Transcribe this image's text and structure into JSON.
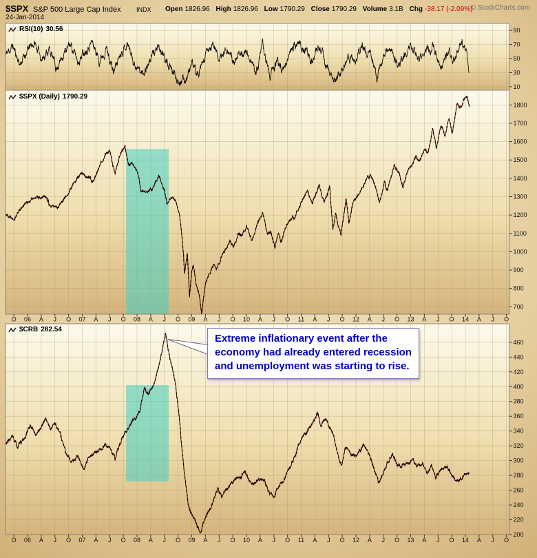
{
  "header": {
    "symbol": "$SPX",
    "name": "S&P 500 Large Cap Index",
    "exchange": "INDX",
    "date": "24-Jan-2014",
    "copyright": "© StockCharts.com",
    "quote": {
      "open_label": "Open",
      "open": "1826.96",
      "high_label": "High",
      "high": "1826.96",
      "low_label": "Low",
      "low": "1790.29",
      "close_label": "Close",
      "close": "1790.29",
      "volume_label": "Volume",
      "volume": "3.1B",
      "chg_label": "Chg",
      "chg": "-38.17 (-2.09%)"
    }
  },
  "annotation": {
    "lines": [
      "Extreme inflationary event after the",
      "economy had already entered recession",
      "and unemployment was starting to rise."
    ],
    "target": {
      "t": 2008.56,
      "v": 464
    }
  },
  "highlight": {
    "t0": 2007.8,
    "t1": 2008.58,
    "regions": [
      {
        "panel": 1,
        "v0": 660,
        "v1": 1560
      },
      {
        "panel": 2,
        "v0": 272,
        "v1": 402
      }
    ]
  },
  "xaxis": {
    "t_start": 2005.75,
    "t_step": 0.25,
    "labels": [
      "O",
      "06",
      "A",
      "J",
      "O",
      "07",
      "A",
      "J",
      "O",
      "08",
      "A",
      "J",
      "O",
      "09",
      "A",
      "J",
      "O",
      "10",
      "A",
      "J",
      "O",
      "11",
      "A",
      "J",
      "O",
      "12",
      "A",
      "J",
      "O",
      "13",
      "A",
      "J",
      "O",
      "14",
      "A",
      "J",
      "O"
    ]
  },
  "colors": {
    "background": "#D9BC89",
    "panel_top": "#FDFAEC",
    "panel_bottom": "#D5B47C",
    "grid": "#A89875",
    "border": "#8B8578",
    "series": "#000000",
    "down_tick": "#CC0000",
    "highlight": "#3FD0C4",
    "annotation_text": "#0000CC",
    "negative": "#CC0000",
    "copyright": "#6F6F6F"
  },
  "chart_data": [
    {
      "id": "rsi",
      "type": "line",
      "label": "RSI(10)",
      "last_value": "30.56",
      "ylim": [
        5,
        100
      ],
      "yticks": [
        90,
        70,
        50,
        30,
        10
      ],
      "noise": 10,
      "clamp": [
        7,
        97
      ],
      "seed": 11,
      "line_width": 0.8,
      "points": [
        [
          2005.6,
          55
        ],
        [
          2005.73,
          68
        ],
        [
          2005.86,
          42
        ],
        [
          2006.0,
          62
        ],
        [
          2006.13,
          72
        ],
        [
          2006.26,
          50
        ],
        [
          2006.4,
          64
        ],
        [
          2006.53,
          36
        ],
        [
          2006.66,
          58
        ],
        [
          2006.79,
          70
        ],
        [
          2006.92,
          46
        ],
        [
          2007.05,
          63
        ],
        [
          2007.18,
          74
        ],
        [
          2007.31,
          48
        ],
        [
          2007.44,
          66
        ],
        [
          2007.57,
          30
        ],
        [
          2007.7,
          60
        ],
        [
          2007.83,
          72
        ],
        [
          2007.96,
          42
        ],
        [
          2008.09,
          28
        ],
        [
          2008.22,
          45
        ],
        [
          2008.35,
          65
        ],
        [
          2008.48,
          55
        ],
        [
          2008.61,
          35
        ],
        [
          2008.74,
          22
        ],
        [
          2008.87,
          18
        ],
        [
          2009.0,
          42
        ],
        [
          2009.13,
          25
        ],
        [
          2009.26,
          55
        ],
        [
          2009.39,
          70
        ],
        [
          2009.52,
          48
        ],
        [
          2009.65,
          68
        ],
        [
          2009.78,
          40
        ],
        [
          2009.91,
          62
        ],
        [
          2010.04,
          55
        ],
        [
          2010.17,
          30
        ],
        [
          2010.3,
          68
        ],
        [
          2010.43,
          25
        ],
        [
          2010.56,
          45
        ],
        [
          2010.69,
          35
        ],
        [
          2010.82,
          65
        ],
        [
          2010.95,
          72
        ],
        [
          2011.08,
          60
        ],
        [
          2011.21,
          45
        ],
        [
          2011.34,
          68
        ],
        [
          2011.47,
          35
        ],
        [
          2011.6,
          20
        ],
        [
          2011.73,
          28
        ],
        [
          2011.86,
          55
        ],
        [
          2011.99,
          48
        ],
        [
          2012.12,
          65
        ],
        [
          2012.25,
          58
        ],
        [
          2012.38,
          25
        ],
        [
          2012.51,
          52
        ],
        [
          2012.64,
          68
        ],
        [
          2012.77,
          38
        ],
        [
          2012.9,
          58
        ],
        [
          2013.03,
          66
        ],
        [
          2013.16,
          45
        ],
        [
          2013.29,
          62
        ],
        [
          2013.42,
          70
        ],
        [
          2013.55,
          35
        ],
        [
          2013.68,
          60
        ],
        [
          2013.81,
          48
        ],
        [
          2013.94,
          72
        ],
        [
          2014.02,
          55
        ],
        [
          2014.07,
          30.56
        ]
      ]
    },
    {
      "id": "spx",
      "type": "line",
      "label": "$SPX (Daily)",
      "last_value": "1790.29",
      "ylim": [
        660,
        1880
      ],
      "yticks": [
        1800,
        1700,
        1600,
        1500,
        1400,
        1300,
        1200,
        1100,
        1000,
        900,
        800,
        700
      ],
      "noise": 14,
      "seed": 22,
      "red_flecks": true,
      "line_width": 0.9,
      "points": [
        [
          2005.6,
          1205
        ],
        [
          2005.75,
          1185
        ],
        [
          2005.92,
          1255
        ],
        [
          2006.08,
          1285
        ],
        [
          2006.2,
          1295
        ],
        [
          2006.33,
          1310
        ],
        [
          2006.42,
          1240
        ],
        [
          2006.55,
          1245
        ],
        [
          2006.7,
          1300
        ],
        [
          2006.9,
          1395
        ],
        [
          2007.0,
          1430
        ],
        [
          2007.12,
          1400
        ],
        [
          2007.18,
          1380
        ],
        [
          2007.3,
          1450
        ],
        [
          2007.42,
          1535
        ],
        [
          2007.5,
          1550
        ],
        [
          2007.6,
          1420
        ],
        [
          2007.7,
          1540
        ],
        [
          2007.78,
          1570
        ],
        [
          2007.85,
          1470
        ],
        [
          2007.92,
          1480
        ],
        [
          2008.0,
          1440
        ],
        [
          2008.08,
          1330
        ],
        [
          2008.2,
          1320
        ],
        [
          2008.3,
          1350
        ],
        [
          2008.4,
          1420
        ],
        [
          2008.5,
          1340
        ],
        [
          2008.55,
          1260
        ],
        [
          2008.62,
          1290
        ],
        [
          2008.7,
          1280
        ],
        [
          2008.78,
          1190
        ],
        [
          2008.83,
          1050
        ],
        [
          2008.87,
          880
        ],
        [
          2008.92,
          990
        ],
        [
          2008.96,
          750
        ],
        [
          2009.0,
          900
        ],
        [
          2009.03,
          930
        ],
        [
          2009.08,
          820
        ],
        [
          2009.13,
          780
        ],
        [
          2009.18,
          672
        ],
        [
          2009.25,
          820
        ],
        [
          2009.33,
          880
        ],
        [
          2009.4,
          930
        ],
        [
          2009.45,
          900
        ],
        [
          2009.52,
          950
        ],
        [
          2009.6,
          1010
        ],
        [
          2009.7,
          1065
        ],
        [
          2009.77,
          1030
        ],
        [
          2009.85,
          1100
        ],
        [
          2009.92,
          1090
        ],
        [
          2010.0,
          1140
        ],
        [
          2010.1,
          1060
        ],
        [
          2010.2,
          1150
        ],
        [
          2010.3,
          1210
        ],
        [
          2010.38,
          1090
        ],
        [
          2010.45,
          1110
        ],
        [
          2010.52,
          1025
        ],
        [
          2010.58,
          1110
        ],
        [
          2010.63,
          1045
        ],
        [
          2010.72,
          1140
        ],
        [
          2010.8,
          1175
        ],
        [
          2010.88,
          1185
        ],
        [
          2011.0,
          1270
        ],
        [
          2011.12,
          1340
        ],
        [
          2011.2,
          1255
        ],
        [
          2011.33,
          1365
        ],
        [
          2011.42,
          1270
        ],
        [
          2011.52,
          1350
        ],
        [
          2011.58,
          1125
        ],
        [
          2011.63,
          1210
        ],
        [
          2011.68,
          1130
        ],
        [
          2011.73,
          1090
        ],
        [
          2011.82,
          1290
        ],
        [
          2011.87,
          1160
        ],
        [
          2011.95,
          1265
        ],
        [
          2012.05,
          1315
        ],
        [
          2012.15,
          1370
        ],
        [
          2012.27,
          1420
        ],
        [
          2012.35,
          1360
        ],
        [
          2012.43,
          1270
        ],
        [
          2012.52,
          1375
        ],
        [
          2012.58,
          1330
        ],
        [
          2012.7,
          1470
        ],
        [
          2012.78,
          1430
        ],
        [
          2012.86,
          1350
        ],
        [
          2012.95,
          1445
        ],
        [
          2013.0,
          1465
        ],
        [
          2013.1,
          1515
        ],
        [
          2013.16,
          1490
        ],
        [
          2013.25,
          1565
        ],
        [
          2013.32,
          1540
        ],
        [
          2013.4,
          1665
        ],
        [
          2013.47,
          1565
        ],
        [
          2013.55,
          1695
        ],
        [
          2013.63,
          1630
        ],
        [
          2013.7,
          1730
        ],
        [
          2013.76,
          1650
        ],
        [
          2013.85,
          1800
        ],
        [
          2013.9,
          1780
        ],
        [
          2014.0,
          1845
        ],
        [
          2014.04,
          1850
        ],
        [
          2014.07,
          1790.29
        ]
      ]
    },
    {
      "id": "crb",
      "type": "line",
      "label": "$CRB",
      "last_value": "282.54",
      "ylim": [
        200,
        485
      ],
      "yticks": [
        460,
        440,
        420,
        400,
        380,
        360,
        340,
        320,
        300,
        280,
        260,
        240,
        220,
        200
      ],
      "noise": 4,
      "seed": 33,
      "red_flecks": true,
      "line_width": 0.9,
      "points": [
        [
          2005.6,
          322
        ],
        [
          2005.72,
          332
        ],
        [
          2005.82,
          318
        ],
        [
          2005.95,
          330
        ],
        [
          2006.05,
          348
        ],
        [
          2006.15,
          335
        ],
        [
          2006.25,
          345
        ],
        [
          2006.33,
          358
        ],
        [
          2006.42,
          342
        ],
        [
          2006.5,
          352
        ],
        [
          2006.6,
          335
        ],
        [
          2006.72,
          305
        ],
        [
          2006.82,
          298
        ],
        [
          2006.92,
          308
        ],
        [
          2007.02,
          288
        ],
        [
          2007.1,
          300
        ],
        [
          2007.2,
          308
        ],
        [
          2007.3,
          312
        ],
        [
          2007.4,
          320
        ],
        [
          2007.5,
          318
        ],
        [
          2007.6,
          302
        ],
        [
          2007.7,
          325
        ],
        [
          2007.8,
          340
        ],
        [
          2007.9,
          352
        ],
        [
          2007.97,
          358
        ],
        [
          2008.05,
          368
        ],
        [
          2008.13,
          398
        ],
        [
          2008.2,
          388
        ],
        [
          2008.28,
          398
        ],
        [
          2008.37,
          420
        ],
        [
          2008.45,
          445
        ],
        [
          2008.52,
          473
        ],
        [
          2008.57,
          448
        ],
        [
          2008.63,
          428
        ],
        [
          2008.7,
          405
        ],
        [
          2008.76,
          368
        ],
        [
          2008.82,
          318
        ],
        [
          2008.88,
          275
        ],
        [
          2008.94,
          238
        ],
        [
          2009.0,
          228
        ],
        [
          2009.08,
          215
        ],
        [
          2009.16,
          202
        ],
        [
          2009.22,
          220
        ],
        [
          2009.3,
          228
        ],
        [
          2009.4,
          248
        ],
        [
          2009.48,
          262
        ],
        [
          2009.55,
          250
        ],
        [
          2009.63,
          262
        ],
        [
          2009.72,
          268
        ],
        [
          2009.8,
          276
        ],
        [
          2009.9,
          278
        ],
        [
          2009.98,
          284
        ],
        [
          2010.06,
          272
        ],
        [
          2010.15,
          268
        ],
        [
          2010.24,
          276
        ],
        [
          2010.33,
          272
        ],
        [
          2010.42,
          256
        ],
        [
          2010.5,
          252
        ],
        [
          2010.58,
          265
        ],
        [
          2010.67,
          272
        ],
        [
          2010.76,
          288
        ],
        [
          2010.85,
          298
        ],
        [
          2010.94,
          318
        ],
        [
          2011.02,
          333
        ],
        [
          2011.12,
          340
        ],
        [
          2011.22,
          352
        ],
        [
          2011.3,
          366
        ],
        [
          2011.36,
          348
        ],
        [
          2011.44,
          355
        ],
        [
          2011.52,
          348
        ],
        [
          2011.6,
          332
        ],
        [
          2011.68,
          302
        ],
        [
          2011.74,
          295
        ],
        [
          2011.8,
          320
        ],
        [
          2011.88,
          310
        ],
        [
          2011.96,
          306
        ],
        [
          2012.05,
          312
        ],
        [
          2012.14,
          322
        ],
        [
          2012.23,
          310
        ],
        [
          2012.32,
          292
        ],
        [
          2012.42,
          268
        ],
        [
          2012.5,
          284
        ],
        [
          2012.58,
          298
        ],
        [
          2012.66,
          310
        ],
        [
          2012.75,
          296
        ],
        [
          2012.84,
          294
        ],
        [
          2012.93,
          296
        ],
        [
          2013.02,
          300
        ],
        [
          2013.12,
          292
        ],
        [
          2013.22,
          296
        ],
        [
          2013.3,
          282
        ],
        [
          2013.38,
          292
        ],
        [
          2013.46,
          276
        ],
        [
          2013.55,
          288
        ],
        [
          2013.64,
          292
        ],
        [
          2013.72,
          286
        ],
        [
          2013.8,
          276
        ],
        [
          2013.88,
          272
        ],
        [
          2013.96,
          280
        ],
        [
          2014.02,
          284
        ],
        [
          2014.07,
          282.54
        ]
      ]
    }
  ]
}
